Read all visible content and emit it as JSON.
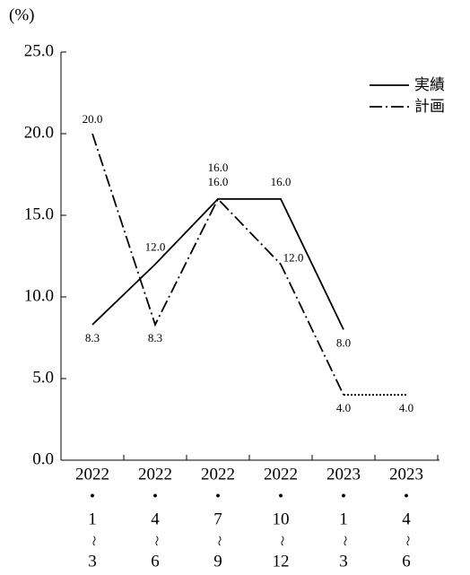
{
  "chart_data": {
    "type": "line",
    "ylabel": "(%)",
    "categories": [
      [
        "2022",
        "・",
        "1",
        "〜",
        "3"
      ],
      [
        "2022",
        "・",
        "4",
        "〜",
        "6"
      ],
      [
        "2022",
        "・",
        "7",
        "〜",
        "9"
      ],
      [
        "2022",
        "・",
        "10",
        "〜",
        "12"
      ],
      [
        "2023",
        "・",
        "1",
        "〜",
        "3"
      ],
      [
        "2023",
        "・",
        "4",
        "〜",
        "6"
      ]
    ],
    "series": [
      {
        "name": "実績",
        "color": "#000000",
        "style": "solid",
        "values": [
          8.3,
          12.0,
          16.0,
          16.0,
          8.0,
          null
        ],
        "value_labels": [
          "8.3",
          "12.0",
          "16.0",
          "16.0",
          "8.0",
          null
        ]
      },
      {
        "name": "計画",
        "color": "#000000",
        "style": "dashdot",
        "dotted_last_segment": true,
        "values": [
          20.0,
          8.3,
          16.0,
          12.0,
          4.0,
          4.0
        ],
        "value_labels": [
          "20.0",
          "8.3",
          "16.0",
          "12.0",
          "4.0",
          "4.0"
        ]
      }
    ],
    "ylim": [
      0,
      25
    ],
    "yticks": [
      {
        "value": 0,
        "label": "0.0"
      },
      {
        "value": 5,
        "label": "5.0"
      },
      {
        "value": 10,
        "label": "10.0"
      },
      {
        "value": 15,
        "label": "15.0"
      },
      {
        "value": 20,
        "label": "20.0"
      },
      {
        "value": 25,
        "label": "25.0"
      }
    ],
    "legend": "top-right"
  }
}
